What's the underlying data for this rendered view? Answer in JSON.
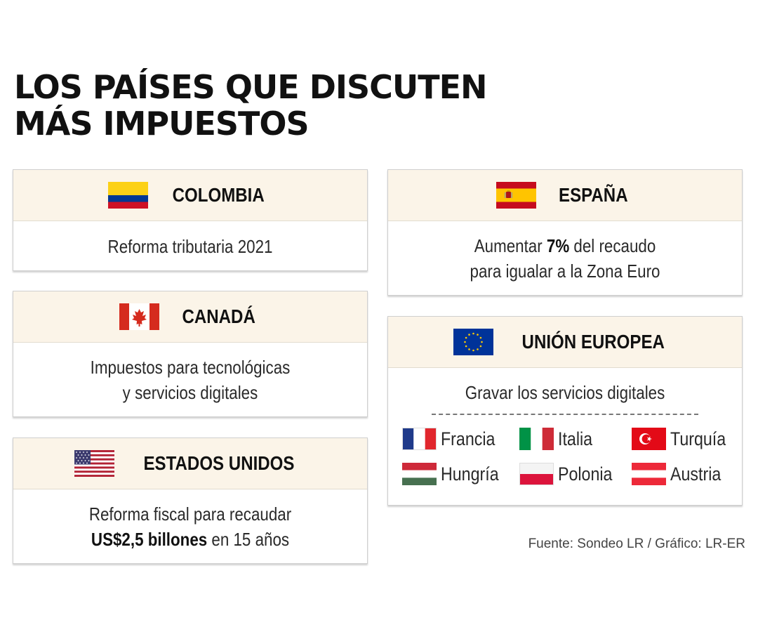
{
  "title": {
    "line1": "LOS PAÍSES QUE DISCUTEN",
    "line2": "MÁS IMPUESTOS"
  },
  "cards": {
    "colombia": {
      "name": "COLOMBIA",
      "flag_icon": "colombia-flag-icon",
      "text1": "Reforma tributaria 2021"
    },
    "canada": {
      "name": "CANADÁ",
      "flag_icon": "canada-flag-icon",
      "text1": "Impuestos para tecnológicas",
      "text2": "y servicios digitales"
    },
    "usa": {
      "name": "ESTADOS UNIDOS",
      "flag_icon": "usa-flag-icon",
      "text1": "Reforma fiscal para recaudar",
      "bold2": "US$2,5 billones",
      "text2": " en 15 años"
    },
    "spain": {
      "name": "ESPAÑA",
      "flag_icon": "spain-flag-icon",
      "text1a": "Aumentar ",
      "bold1": "7%",
      "text1b": " del recaudo",
      "text2": "para igualar a la Zona Euro"
    },
    "eu": {
      "name": "UNIÓN EUROPEA",
      "flag_icon": "eu-flag-icon",
      "text1": "Gravar los servicios digitales",
      "countries": [
        {
          "name": "Francia",
          "icon": "france-flag-icon"
        },
        {
          "name": "Italia",
          "icon": "italy-flag-icon"
        },
        {
          "name": "Turquía",
          "icon": "turkey-flag-icon"
        },
        {
          "name": "Hungría",
          "icon": "hungary-flag-icon"
        },
        {
          "name": "Polonia",
          "icon": "poland-flag-icon"
        },
        {
          "name": "Austria",
          "icon": "austria-flag-icon"
        }
      ]
    }
  },
  "source": "Fuente: Sondeo LR / Gráfico: LR-ER",
  "colors": {
    "header_bg": "#fbf4e8",
    "border": "#cfcfcf"
  }
}
